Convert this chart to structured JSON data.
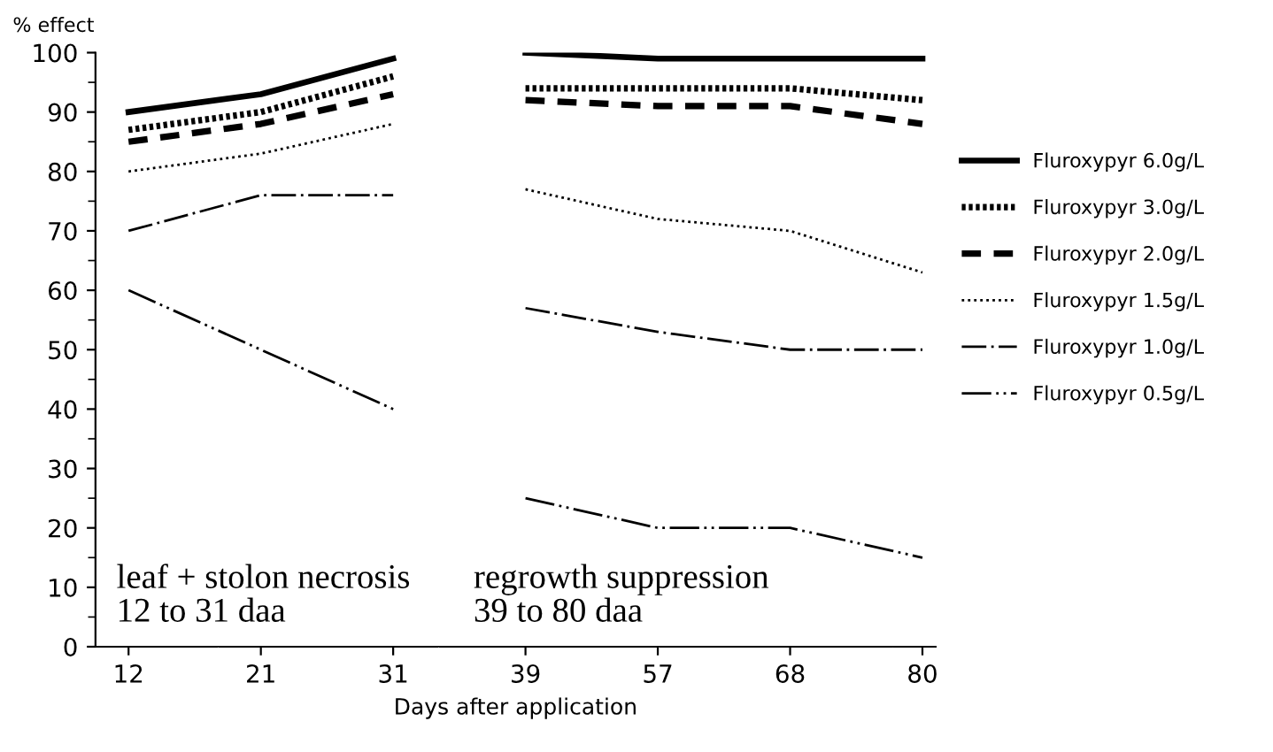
{
  "chart_data": {
    "type": "line",
    "ylabel": "% effect",
    "xlabel": "Days after application",
    "categories": [
      "12",
      "21",
      "31",
      "39",
      "57",
      "68",
      "80"
    ],
    "series": [
      {
        "name": "Fluroxypyr 6.0g/L",
        "color": "#000000",
        "line_style": "solid",
        "values": [
          90,
          93,
          99,
          null,
          null,
          null,
          null
        ]
      },
      {
        "name": "Fluroxypyr 3.0g/L",
        "color": "#000000",
        "line_style": "dotted",
        "values": [
          87,
          90,
          96,
          null,
          null,
          null,
          null
        ]
      },
      {
        "name": "Fluroxypyr 2.0g/L",
        "color": "#000000",
        "line_style": "dashed",
        "values": [
          85,
          88,
          93,
          null,
          null,
          null,
          null
        ]
      },
      {
        "name": "Fluroxypyr 1.5g/L",
        "color": "#000000",
        "line_style": "dotted",
        "values": [
          80,
          83,
          88,
          null,
          null,
          null,
          null
        ]
      },
      {
        "name": "Fluroxypyr 1.0g/L",
        "color": "#000000",
        "line_style": "dashed",
        "values": [
          70,
          76,
          76,
          null,
          null,
          null,
          null
        ]
      },
      {
        "name": "Fluroxypyr 0.5g/L",
        "color": "#000000",
        "line_style": "dashed",
        "values": [
          60,
          50,
          40,
          null,
          null,
          null,
          null
        ]
      },
      {
        "color": "#000000",
        "line_style": "solid",
        "values": [
          null,
          null,
          null,
          100,
          99,
          99,
          99
        ]
      },
      {
        "color": "#000000",
        "line_style": "dotted",
        "values": [
          null,
          null,
          null,
          94,
          94,
          94,
          92
        ]
      },
      {
        "color": "#000000",
        "line_style": "dashed",
        "values": [
          null,
          null,
          null,
          92,
          91,
          91,
          88
        ]
      },
      {
        "color": "#000000",
        "line_style": "dotted",
        "values": [
          null,
          null,
          null,
          77,
          72,
          70,
          63
        ]
      },
      {
        "color": "#000000",
        "line_style": "dashed",
        "values": [
          null,
          null,
          null,
          57,
          53,
          50,
          50
        ]
      },
      {
        "color": "#000000",
        "line_style": "dashed",
        "values": [
          null,
          null,
          null,
          25,
          20,
          20,
          15
        ]
      }
    ],
    "ylim": [
      0,
      100
    ],
    "yticks": [
      0,
      10,
      20,
      30,
      40,
      50,
      60,
      70,
      80,
      90,
      100
    ],
    "annotations": [
      "leaf + stolon necrosis\n12 to 31 daa",
      "regrowth suppression\n39 to 80 daa"
    ],
    "legend": "right",
    "grid": false,
    "marker": "none"
  }
}
